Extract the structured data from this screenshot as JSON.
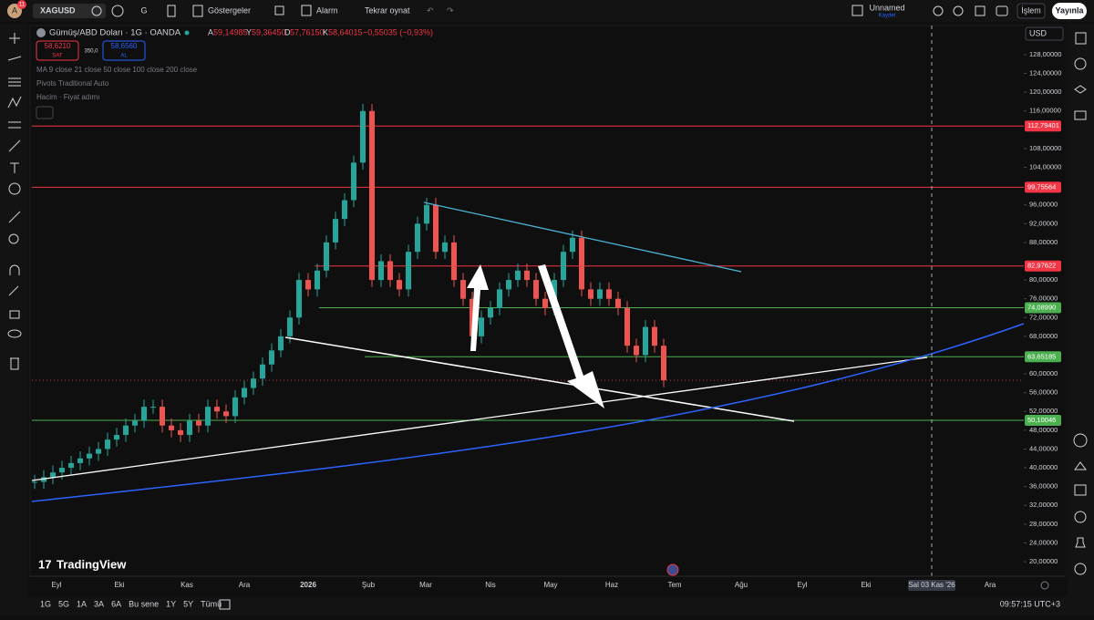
{
  "toolbar": {
    "avatar": "A",
    "badge": "11",
    "symbol": "XAGUSD",
    "interval": "G",
    "indicators": "Göstergeler",
    "alert": "Alarm",
    "replay": "Tekrar oynat",
    "layout_name": "Unnamed",
    "save": "Kaydet",
    "trade": "İşlem",
    "publish": "Yayınla"
  },
  "legend": {
    "title": "Gümüş/ABD Doları · 1G · OANDA",
    "ohlc": [
      {
        "prefix": "A",
        "value": "59,14985"
      },
      {
        "prefix": "Y",
        "value": "59,36450"
      },
      {
        "prefix": "D",
        "value": "57,76150"
      },
      {
        "prefix": "K",
        "value": "58,64015"
      }
    ],
    "change": "−0,55035 (−0,93%)",
    "sell": {
      "price": "58,6210",
      "label": "SAT"
    },
    "spread": "350,0",
    "buy": {
      "price": "58,6560",
      "label": "AL"
    },
    "indicators": [
      "MA 9 close 21 close 50 close 100 close 200 close",
      "Pivots Traditional Auto",
      "Hacim · Fiyat adımı"
    ]
  },
  "chart": {
    "currency": "USD",
    "ylim": [
      16.9,
      134.2
    ],
    "yticks": [
      {
        "value": 20,
        "label": "20,00000"
      },
      {
        "value": 24,
        "label": "24,00000"
      },
      {
        "value": 28,
        "label": "28,00000"
      },
      {
        "value": 32,
        "label": "32,00000"
      },
      {
        "value": 36,
        "label": "36,00000"
      },
      {
        "value": 40,
        "label": "40,00000"
      },
      {
        "value": 44,
        "label": "44,00000"
      },
      {
        "value": 48,
        "label": "48,00000"
      },
      {
        "value": 52,
        "label": "52,00000"
      },
      {
        "value": 56,
        "label": "56,00000"
      },
      {
        "value": 60,
        "label": "60,00000"
      },
      {
        "value": 68,
        "label": "68,00000"
      },
      {
        "value": 72,
        "label": "72,00000"
      },
      {
        "value": 76,
        "label": "76,00000"
      },
      {
        "value": 80,
        "label": "80,00000"
      },
      {
        "value": 88,
        "label": "88,00000"
      },
      {
        "value": 92,
        "label": "92,00000"
      },
      {
        "value": 96,
        "label": "96,00000"
      },
      {
        "value": 104,
        "label": "104,00000"
      },
      {
        "value": 108,
        "label": "108,00000"
      },
      {
        "value": 116,
        "label": "116,00000"
      },
      {
        "value": 120,
        "label": "120,00000"
      },
      {
        "value": 124,
        "label": "124,00000"
      },
      {
        "value": 128,
        "label": "128,00000"
      }
    ],
    "levels": [
      {
        "value": 112.79401,
        "label": "112,79401",
        "color": "#f23645"
      },
      {
        "value": 99.75564,
        "label": "99,75564",
        "color": "#f23645"
      },
      {
        "value": 82.97622,
        "label": "82,97622",
        "color": "#f23645"
      },
      {
        "value": 74.0899,
        "label": "74,08990",
        "color": "#4caf50"
      },
      {
        "value": 63.65185,
        "label": "63,65185",
        "color": "#4caf50"
      },
      {
        "value": 50.10046,
        "label": "50,10046",
        "color": "#4caf50"
      }
    ],
    "closes": [
      37,
      38,
      39,
      40,
      41,
      42,
      43,
      44,
      46,
      47,
      49,
      50,
      53,
      53,
      49,
      48,
      47,
      50,
      49,
      53,
      52,
      51,
      55,
      57,
      59,
      62,
      65,
      68,
      72,
      80,
      78,
      82,
      88,
      93,
      97,
      105,
      116,
      80,
      84,
      80,
      78,
      86,
      92,
      96,
      86,
      88,
      80,
      76,
      68,
      72,
      74,
      78,
      80,
      82,
      80,
      76,
      74,
      80,
      86,
      89,
      78,
      76,
      78,
      76,
      74,
      66,
      64,
      70,
      66,
      58.64015
    ],
    "up_color": "#26a69a",
    "down_color": "#ef5350",
    "time_labels": [
      "Eyl",
      "Eki",
      "Kas",
      "Ara",
      "2026",
      "Şub",
      "Mar",
      "Nis",
      "May",
      "Haz",
      "Tem",
      "Ağu",
      "Eyl",
      "Eki",
      "Sal 03 Kas '26",
      "Ara"
    ],
    "brand": "TradingView"
  },
  "bottom": {
    "ranges": [
      "1G",
      "5G",
      "1A",
      "3A",
      "6A",
      "Bu sene",
      "1Y",
      "5Y",
      "Tümü"
    ],
    "clock": "09:57:15 UTC+3"
  }
}
